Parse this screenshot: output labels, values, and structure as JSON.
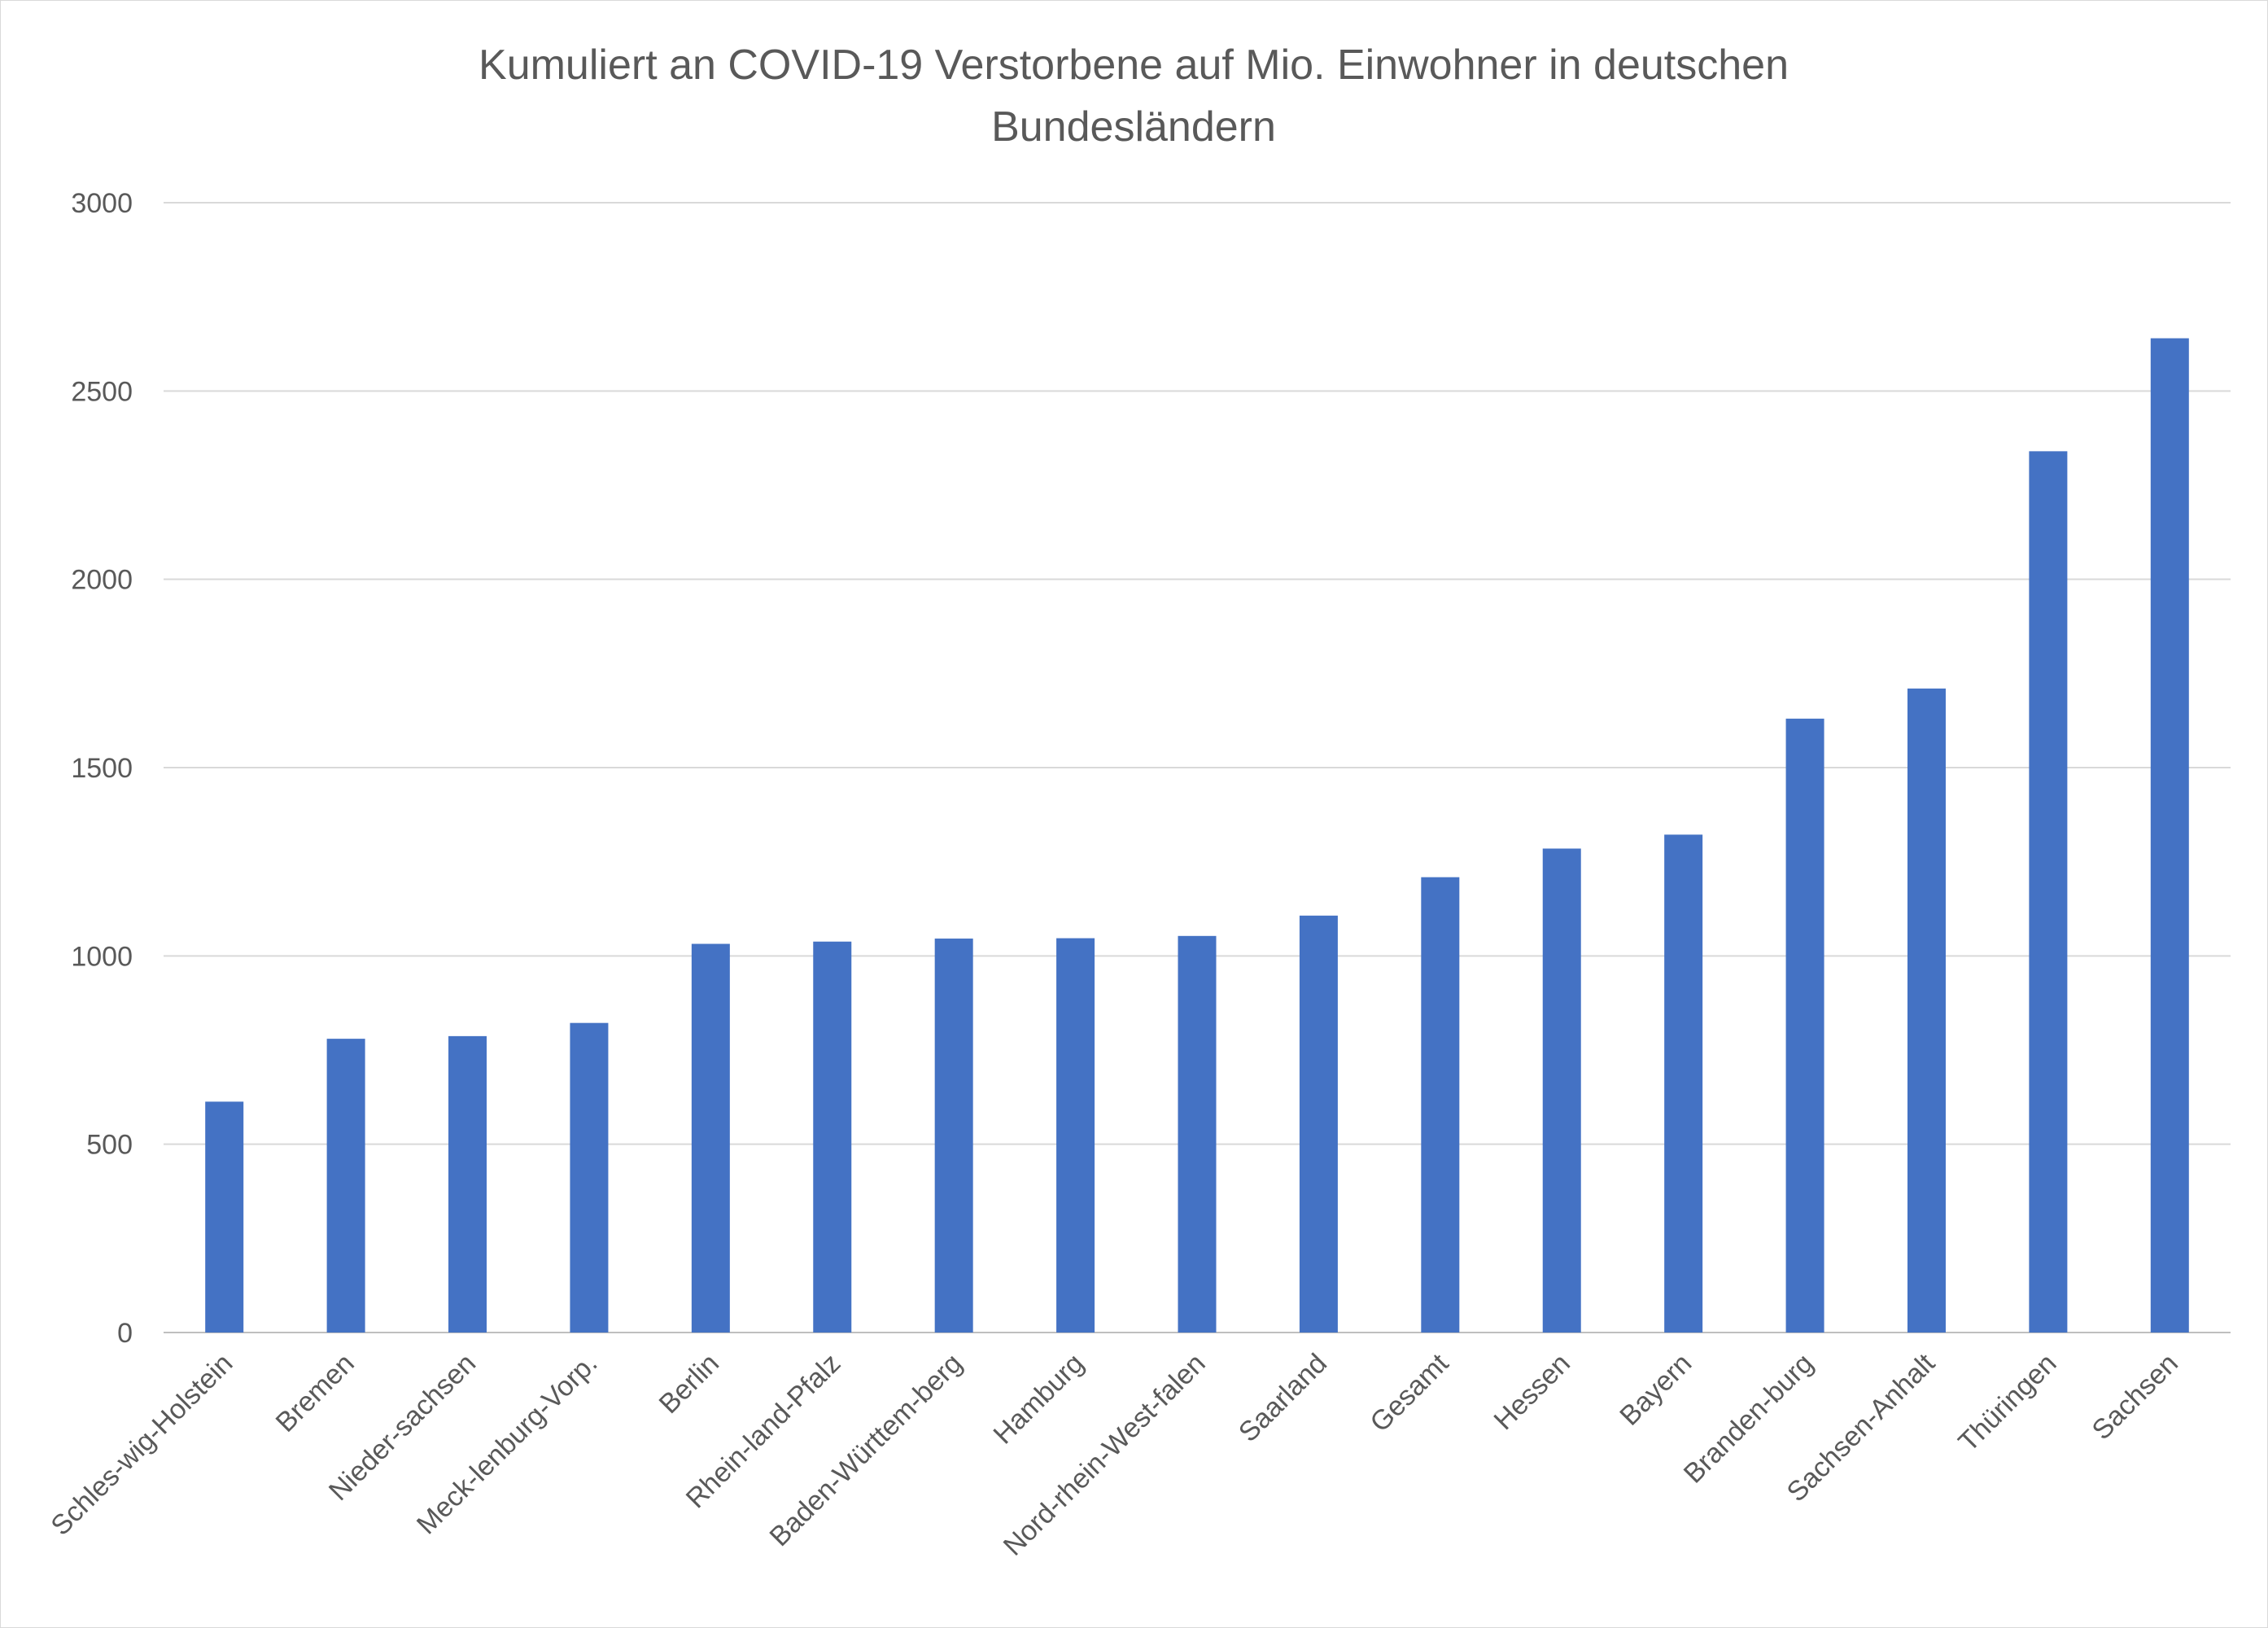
{
  "chart_data": {
    "type": "bar",
    "title": "Kumuliert an COVID-19 Verstorbene auf Mio. Einwohner in deutschen Bundesländern",
    "title_lines": [
      "Kumuliert an COVID-19 Verstorbene auf Mio. Einwohner in deutschen",
      "Bundesländern"
    ],
    "xlabel": "",
    "ylabel": "",
    "categories": [
      "Schles-wig-Holstein",
      "Bremen",
      "Nieder-sachsen",
      "Meck-lenburg-Vorp.",
      "Berlin",
      "Rhein-land-Pfalz",
      "Baden-Württem-berg",
      "Hamburg",
      "Nord-rhein-West-falen",
      "Saarland",
      "Gesamt",
      "Hessen",
      "Bayern",
      "Branden-burg",
      "Sachsen-Anhalt",
      "Thüringen",
      "Sachsen"
    ],
    "values": [
      613,
      780,
      787,
      822,
      1032,
      1038,
      1046,
      1047,
      1053,
      1107,
      1209,
      1285,
      1322,
      1630,
      1710,
      2340,
      2640
    ],
    "ylim": [
      0,
      3000
    ],
    "yticks": [
      0,
      500,
      1000,
      1500,
      2000,
      2500,
      3000
    ],
    "grid": true,
    "legend": "none",
    "colors": {
      "bar": "#4472C4",
      "grid": "#D9D9D9",
      "text": "#595959"
    }
  }
}
